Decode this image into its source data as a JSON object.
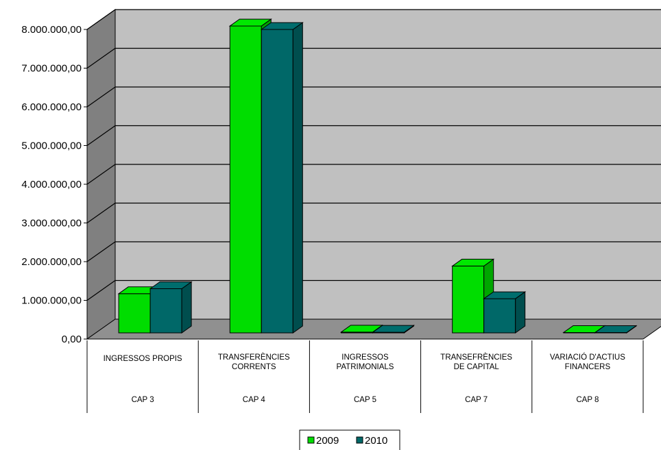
{
  "chart_data": {
    "type": "bar",
    "style": "3d-clustered",
    "categories": [
      {
        "label": [
          "INGRESSOS PROPIS"
        ],
        "group": "CAP 3"
      },
      {
        "label": [
          "TRANSFERÈNCIES",
          "CORRENTS"
        ],
        "group": "CAP 4"
      },
      {
        "label": [
          "INGRESSOS",
          "PATRIMONIALS"
        ],
        "group": "CAP 5"
      },
      {
        "label": [
          "TRANSEFRÈNCIES",
          "DE CAPITAL"
        ],
        "group": "CAP 7"
      },
      {
        "label": [
          "VARIACIÓ D'ACTIUS",
          "FINANCERS"
        ],
        "group": "CAP 8"
      }
    ],
    "series": [
      {
        "name": "2009",
        "values": [
          1020000,
          7990000,
          20000,
          1740000,
          10000
        ]
      },
      {
        "name": "2010",
        "values": [
          1150000,
          7900000,
          15000,
          890000,
          8000
        ]
      }
    ],
    "ylim": [
      0,
      8000000
    ],
    "yticks": [
      0,
      1000000,
      2000000,
      3000000,
      4000000,
      5000000,
      6000000,
      7000000,
      8000000
    ],
    "ytick_labels": [
      "0,00",
      "1.000.000,00",
      "2.000.000,00",
      "3.000.000,00",
      "4.000.000,00",
      "5.000.000,00",
      "6.000.000,00",
      "7.000.000,00",
      "8.000.000,00"
    ],
    "grid": true,
    "legend": "bottom",
    "title": "",
    "xlabel": "",
    "ylabel": ""
  },
  "colors": {
    "series_2009": "#00dd00",
    "series_2010": "#006868",
    "back_wall": "#c0c0c0",
    "side_wall": "#808080",
    "floor": "#909090"
  }
}
